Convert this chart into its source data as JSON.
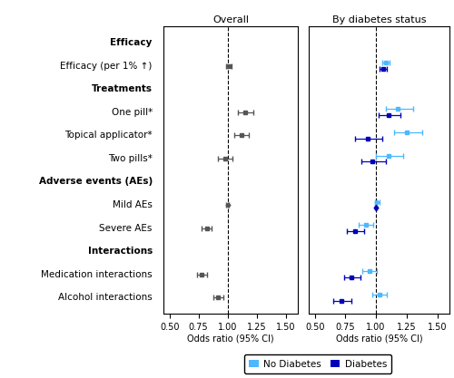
{
  "labels": [
    "Efficacy",
    "Efficacy (per 1% ↑)",
    "Treatments",
    "One pill*",
    "Topical applicator*",
    "Two pills*",
    "Adverse events (AEs)",
    "Mild AEs",
    "Severe AEs",
    "Interactions",
    "Medication interactions",
    "Alcohol interactions"
  ],
  "bold_labels": [
    "Efficacy",
    "Treatments",
    "Adverse events (AEs)",
    "Interactions"
  ],
  "overall": {
    "or": [
      null,
      1.01,
      null,
      1.15,
      1.12,
      0.98,
      null,
      1.0,
      0.82,
      null,
      0.78,
      0.92
    ],
    "ci_lo": [
      null,
      0.99,
      null,
      1.09,
      1.06,
      0.92,
      null,
      0.99,
      0.78,
      null,
      0.74,
      0.88
    ],
    "ci_hi": [
      null,
      1.03,
      null,
      1.22,
      1.18,
      1.04,
      null,
      1.01,
      0.86,
      null,
      0.82,
      0.96
    ]
  },
  "no_diabetes": {
    "or": [
      null,
      1.08,
      null,
      1.18,
      1.25,
      1.1,
      null,
      1.01,
      0.92,
      null,
      0.95,
      1.03
    ],
    "ci_lo": [
      null,
      1.05,
      null,
      1.08,
      1.15,
      1.0,
      null,
      0.99,
      0.86,
      null,
      0.89,
      0.97
    ],
    "ci_hi": [
      null,
      1.11,
      null,
      1.3,
      1.38,
      1.22,
      null,
      1.03,
      0.98,
      null,
      1.01,
      1.09
    ]
  },
  "diabetes": {
    "or": [
      null,
      1.06,
      null,
      1.1,
      0.93,
      0.97,
      null,
      1.0,
      0.83,
      null,
      0.8,
      0.72
    ],
    "ci_lo": [
      null,
      1.03,
      null,
      1.02,
      0.83,
      0.88,
      null,
      0.99,
      0.76,
      null,
      0.74,
      0.65
    ],
    "ci_hi": [
      null,
      1.09,
      null,
      1.2,
      1.05,
      1.08,
      null,
      1.01,
      0.9,
      null,
      0.87,
      0.8
    ]
  },
  "xlim": [
    0.45,
    1.6
  ],
  "xticks": [
    0.5,
    0.75,
    1.0,
    1.25,
    1.5
  ],
  "xticklabels": [
    "0.50",
    "0.75",
    "1.00",
    "1.25",
    "1.50"
  ],
  "color_overall": "#555555",
  "color_no_diabetes": "#4db8ff",
  "color_diabetes": "#0000bb",
  "overall_title": "Overall",
  "diabetes_title": "By diabetes status",
  "xlabel": "Odds ratio (95% CI)",
  "legend_no_diabetes": "No Diabetes",
  "legend_diabetes": "Diabetes"
}
